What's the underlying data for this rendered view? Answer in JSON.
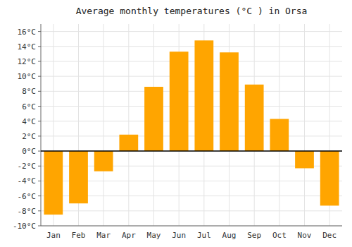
{
  "chart_data": {
    "type": "bar",
    "title": "Average monthly temperatures (°C ) in Orsa",
    "categories": [
      "Jan",
      "Feb",
      "Mar",
      "Apr",
      "May",
      "Jun",
      "Jul",
      "Aug",
      "Sep",
      "Oct",
      "Nov",
      "Dec"
    ],
    "values": [
      -8.5,
      -7.0,
      -2.7,
      2.2,
      8.6,
      13.3,
      14.8,
      13.2,
      8.9,
      4.3,
      -2.3,
      -7.3
    ],
    "color": "#FFA500",
    "ylim": [
      -10,
      17
    ],
    "yticks": [
      {
        "value": -10,
        "label": "-10°C"
      },
      {
        "value": -8,
        "label": "-8°C"
      },
      {
        "value": -6,
        "label": "-6°C"
      },
      {
        "value": -4,
        "label": "-4°C"
      },
      {
        "value": -2,
        "label": "-2°C"
      },
      {
        "value": 0,
        "label": "0°C"
      },
      {
        "value": 2,
        "label": "2°C"
      },
      {
        "value": 4,
        "label": "4°C"
      },
      {
        "value": 6,
        "label": "6°C"
      },
      {
        "value": 8,
        "label": "8°C"
      },
      {
        "value": 10,
        "label": "10°C"
      },
      {
        "value": 12,
        "label": "12°C"
      },
      {
        "value": 14,
        "label": "14°C"
      },
      {
        "value": 16,
        "label": "16°C"
      }
    ],
    "grid": true
  }
}
